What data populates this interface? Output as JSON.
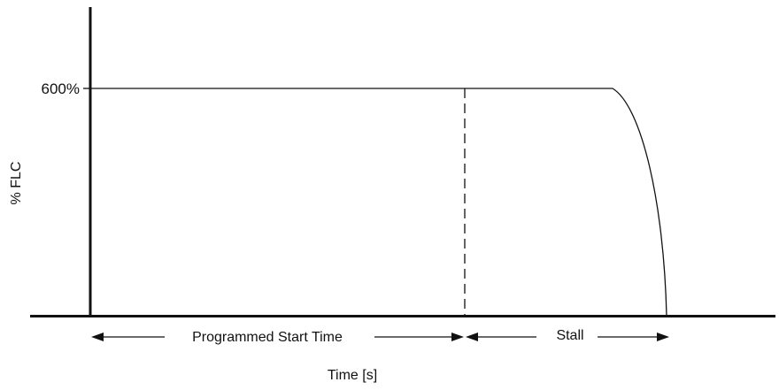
{
  "diagram": {
    "ylabel": "% FLC",
    "xlabel": "Time [s]",
    "y_tick_label": "600%",
    "segments": {
      "start": "Programmed Start Time",
      "stall": "Stall"
    }
  }
}
